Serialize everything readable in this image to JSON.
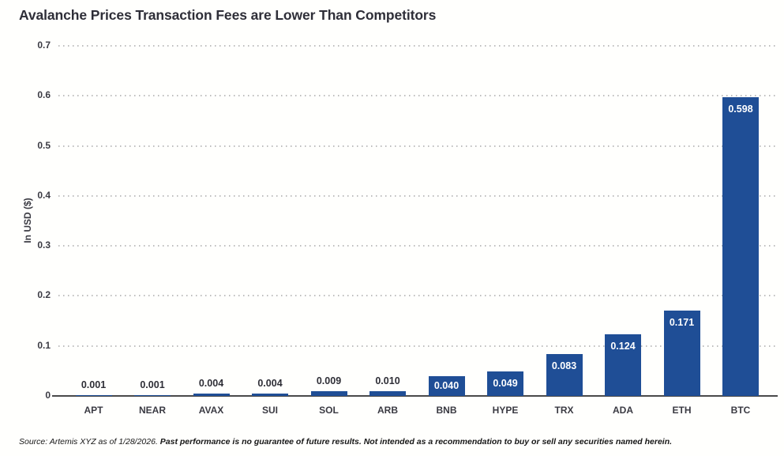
{
  "title": "Avalanche Prices Transaction Fees are Lower Than Competitors",
  "chart_data": {
    "type": "bar",
    "title": "Avalanche Prices Transaction Fees are Lower Than Competitors",
    "categories": [
      "APT",
      "NEAR",
      "AVAX",
      "SUI",
      "SOL",
      "ARB",
      "BNB",
      "HYPE",
      "TRX",
      "ADA",
      "ETH",
      "BTC"
    ],
    "values": [
      0.001,
      0.001,
      0.004,
      0.004,
      0.009,
      0.01,
      0.04,
      0.049,
      0.083,
      0.124,
      0.171,
      0.598
    ],
    "value_labels": [
      "0.001",
      "0.001",
      "0.004",
      "0.004",
      "0.009",
      "0.010",
      "0.040",
      "0.049",
      "0.083",
      "0.124",
      "0.171",
      "0.598"
    ],
    "xlabel": "",
    "ylabel": "In USD ($)",
    "ylim": [
      0,
      0.7
    ],
    "yticks": [
      0,
      0.1,
      0.2,
      0.3,
      0.4,
      0.5,
      0.6,
      0.7
    ],
    "ytick_labels": [
      "0",
      "0.1",
      "0.2",
      "0.3",
      "0.4",
      "0.5",
      "0.6",
      "0.7"
    ],
    "grid": "horizontal-dotted",
    "legend": "none",
    "bar_color": "#1f4e96",
    "inside_label_color": "#ffffff",
    "outside_label_color": "#2e2e36"
  },
  "footer": {
    "source_text": "Source: Artemis XYZ as of 1/28/2026. ",
    "disclaimer_text": "Past performance is no guarantee of future results. Not intended as a recommendation to buy or sell any securities named herein."
  }
}
